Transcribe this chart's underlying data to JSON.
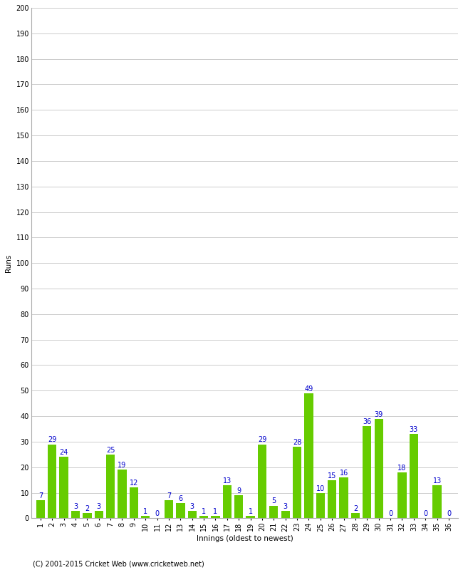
{
  "innings": [
    1,
    2,
    3,
    4,
    5,
    6,
    7,
    8,
    9,
    10,
    11,
    12,
    13,
    14,
    15,
    16,
    17,
    18,
    19,
    20,
    21,
    22,
    23,
    24,
    25,
    26,
    27,
    28,
    29,
    30,
    31,
    32,
    33,
    34,
    35,
    36
  ],
  "runs": [
    7,
    29,
    24,
    3,
    2,
    3,
    25,
    19,
    12,
    1,
    0,
    7,
    6,
    3,
    1,
    1,
    13,
    9,
    1,
    29,
    5,
    3,
    28,
    49,
    10,
    15,
    16,
    2,
    36,
    39,
    0,
    18,
    33,
    0,
    13,
    0
  ],
  "bar_color": "#66cc00",
  "label_color": "#0000cc",
  "background_color": "#ffffff",
  "grid_color": "#cccccc",
  "ylabel": "Runs",
  "xlabel": "Innings (oldest to newest)",
  "copyright": "(C) 2001-2015 Cricket Web (www.cricketweb.net)",
  "ylim": [
    0,
    200
  ],
  "yticks": [
    0,
    10,
    20,
    30,
    40,
    50,
    60,
    70,
    80,
    90,
    100,
    110,
    120,
    130,
    140,
    150,
    160,
    170,
    180,
    190,
    200
  ],
  "label_fontsize": 7.5,
  "tick_fontsize": 7,
  "bar_label_fontsize": 7,
  "copyright_fontsize": 7,
  "ylabel_fontsize": 7.5
}
